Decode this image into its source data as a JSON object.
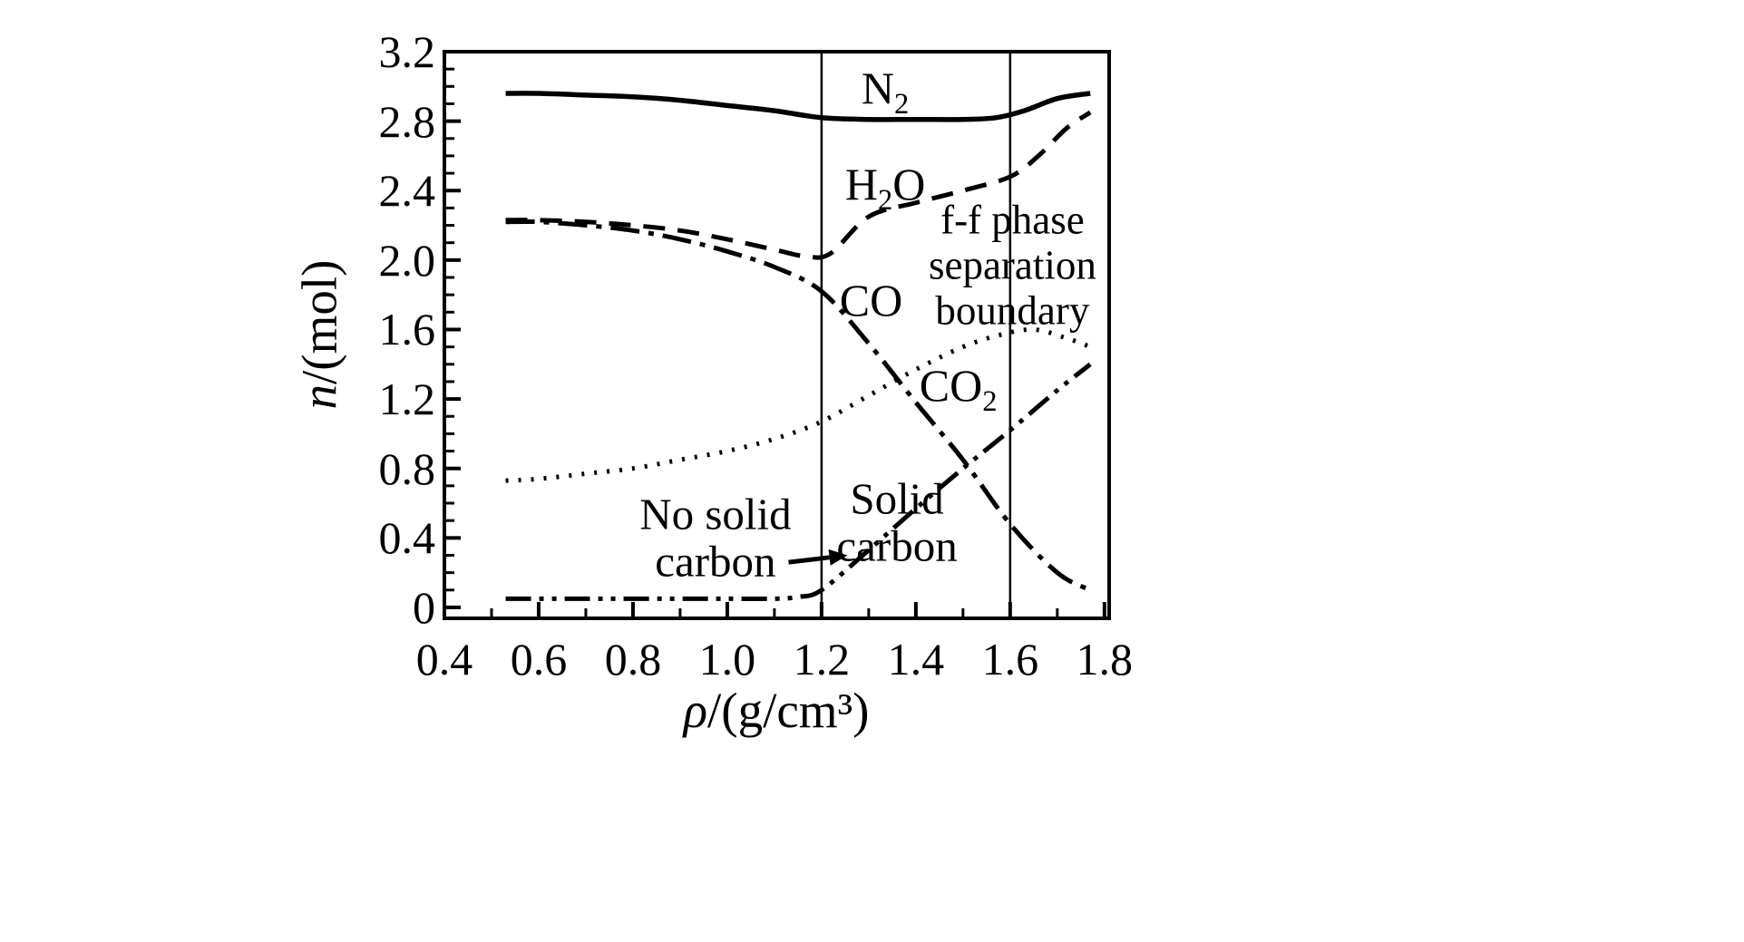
{
  "figure": {
    "background": "#ffffff",
    "ink": "#000000"
  },
  "chart_data": {
    "type": "line",
    "title": "",
    "xlabel": "ρ/(g/cm³)",
    "ylabel": "n/(mol)",
    "xlabel_parts": {
      "sym": "ρ",
      "rest": "/(g/cm³)"
    },
    "ylabel_parts": {
      "sym": "n",
      "rest": "/(mol)"
    },
    "xlim": [
      0.4,
      1.8
    ],
    "ylim": [
      0,
      3.2
    ],
    "grid": false,
    "legend": "none",
    "x_ticks": [
      {
        "v": 0.4,
        "label": "0.4"
      },
      {
        "v": 0.6,
        "label": "0.6"
      },
      {
        "v": 0.8,
        "label": "0.8"
      },
      {
        "v": 1.0,
        "label": "1.0"
      },
      {
        "v": 1.2,
        "label": "1.2"
      },
      {
        "v": 1.4,
        "label": "1.4"
      },
      {
        "v": 1.6,
        "label": "1.6"
      },
      {
        "v": 1.8,
        "label": "1.8"
      }
    ],
    "y_ticks": [
      {
        "v": 0,
        "label": "0"
      },
      {
        "v": 0.4,
        "label": "0.4"
      },
      {
        "v": 0.8,
        "label": "0.8"
      },
      {
        "v": 1.2,
        "label": "1.2"
      },
      {
        "v": 1.6,
        "label": "1.6"
      },
      {
        "v": 2.0,
        "label": "2.0"
      },
      {
        "v": 2.4,
        "label": "2.4"
      },
      {
        "v": 2.8,
        "label": "2.8"
      },
      {
        "v": 3.2,
        "label": "3.2"
      }
    ],
    "minor_tick_step": {
      "x": 0.1,
      "y": 0.1
    },
    "boundary_lines": [
      {
        "x": 1.2
      },
      {
        "x": 1.6
      }
    ],
    "series": [
      {
        "id": "n2",
        "name": "N2",
        "style": "solid",
        "x": [
          0.53,
          0.6,
          0.7,
          0.8,
          0.9,
          1.0,
          1.1,
          1.2,
          1.3,
          1.4,
          1.5,
          1.57,
          1.63,
          1.7,
          1.77
        ],
        "y": [
          2.96,
          2.96,
          2.95,
          2.94,
          2.92,
          2.89,
          2.86,
          2.82,
          2.81,
          2.81,
          2.81,
          2.82,
          2.86,
          2.93,
          2.96
        ]
      },
      {
        "id": "h2o",
        "name": "H2O",
        "style": "dashed",
        "x": [
          0.53,
          0.6,
          0.7,
          0.8,
          0.9,
          1.0,
          1.1,
          1.17,
          1.22,
          1.3,
          1.4,
          1.5,
          1.6,
          1.66,
          1.72,
          1.77
        ],
        "y": [
          2.23,
          2.23,
          2.22,
          2.2,
          2.17,
          2.12,
          2.06,
          2.02,
          2.04,
          2.25,
          2.33,
          2.4,
          2.48,
          2.6,
          2.76,
          2.85
        ]
      },
      {
        "id": "co",
        "name": "CO",
        "style": "dash-dot",
        "x": [
          0.53,
          0.6,
          0.7,
          0.8,
          0.9,
          1.0,
          1.1,
          1.2,
          1.3,
          1.4,
          1.5,
          1.6,
          1.7,
          1.77
        ],
        "y": [
          2.22,
          2.22,
          2.2,
          2.17,
          2.12,
          2.05,
          1.96,
          1.82,
          1.52,
          1.18,
          0.85,
          0.48,
          0.2,
          0.1
        ]
      },
      {
        "id": "co2",
        "name": "CO2",
        "style": "dotted",
        "x": [
          0.53,
          0.6,
          0.7,
          0.8,
          0.9,
          1.0,
          1.1,
          1.2,
          1.3,
          1.4,
          1.5,
          1.58,
          1.65,
          1.72,
          1.77
        ],
        "y": [
          0.73,
          0.74,
          0.77,
          0.8,
          0.85,
          0.9,
          0.97,
          1.07,
          1.22,
          1.37,
          1.5,
          1.57,
          1.6,
          1.55,
          1.5
        ]
      },
      {
        "id": "solid-carbon",
        "name": "Solid carbon",
        "style": "dash-dot-dot",
        "x": [
          0.53,
          0.7,
          0.9,
          1.0,
          1.1,
          1.15,
          1.2,
          1.3,
          1.4,
          1.5,
          1.6,
          1.7,
          1.77
        ],
        "y": [
          0.05,
          0.05,
          0.05,
          0.05,
          0.05,
          0.06,
          0.1,
          0.33,
          0.57,
          0.8,
          1.02,
          1.25,
          1.4
        ]
      }
    ],
    "annotations": [
      {
        "name": "label-n2",
        "x": 1.335,
        "y": 2.99,
        "parts": [
          {
            "t": "N"
          },
          {
            "t": "2",
            "sub": true
          }
        ]
      },
      {
        "name": "label-h2o",
        "x": 1.335,
        "y": 2.44,
        "parts": [
          {
            "t": "H"
          },
          {
            "t": "2",
            "sub": true
          },
          {
            "t": "O"
          }
        ]
      },
      {
        "name": "label-co",
        "x": 1.305,
        "y": 1.77,
        "parts": [
          {
            "t": "CO"
          }
        ]
      },
      {
        "name": "label-ff-boundary",
        "x": 1.605,
        "y": 1.97,
        "lines": [
          "f-f phase",
          "separation",
          "boundary"
        ]
      },
      {
        "name": "label-co2",
        "x": 1.49,
        "y": 1.28,
        "parts": [
          {
            "t": "CO"
          },
          {
            "t": "2",
            "sub": true
          }
        ]
      },
      {
        "name": "label-no-solid-carbon",
        "x": 0.975,
        "y": 0.4,
        "lines": [
          "No solid",
          "carbon"
        ]
      },
      {
        "name": "label-solid-carbon",
        "x": 1.36,
        "y": 0.49,
        "lines": [
          "Solid",
          "carbon"
        ]
      }
    ],
    "arrows": [
      {
        "from": [
          1.13,
          0.26
        ],
        "to": [
          1.255,
          0.3
        ]
      }
    ]
  }
}
